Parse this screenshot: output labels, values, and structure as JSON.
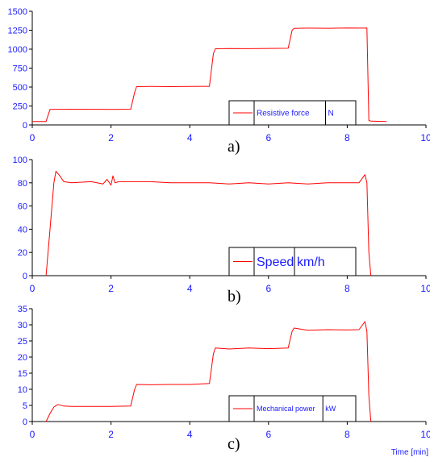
{
  "chart_data": [
    {
      "type": "line",
      "panel_label": "a)",
      "xlabel": "",
      "ylabel": "",
      "xlim": [
        0,
        10
      ],
      "ylim": [
        0,
        1500
      ],
      "x_ticks": [
        0,
        2,
        4,
        6,
        8,
        10
      ],
      "x_tick_labels": [
        "0",
        "2",
        "4",
        "6",
        "8",
        "10"
      ],
      "y_ticks": [
        0,
        250,
        500,
        750,
        1000,
        1250,
        1500
      ],
      "y_tick_labels": [
        "0",
        "250",
        "500",
        "750",
        "1000",
        "1250",
        "1500"
      ],
      "legend": {
        "name": "Resistive force",
        "unit": "N"
      },
      "series": [
        {
          "name": "Resistive force",
          "color": "#ff0000",
          "x": [
            0,
            0.35,
            0.45,
            1.0,
            2.0,
            2.5,
            2.6,
            2.65,
            3.0,
            3.5,
            4.0,
            4.5,
            4.6,
            4.65,
            5.0,
            5.5,
            6.0,
            6.5,
            6.6,
            6.65,
            7.0,
            7.5,
            8.0,
            8.4,
            8.5,
            8.55,
            8.6,
            9.0
          ],
          "y": [
            45,
            45,
            205,
            207,
            205,
            207,
            430,
            505,
            507,
            505,
            508,
            510,
            940,
            1005,
            1008,
            1006,
            1010,
            1012,
            1250,
            1275,
            1278,
            1276,
            1280,
            1278,
            1280,
            60,
            50,
            45
          ]
        }
      ]
    },
    {
      "type": "line",
      "panel_label": "b)",
      "xlabel": "",
      "ylabel": "",
      "xlim": [
        0,
        10
      ],
      "ylim": [
        0,
        100
      ],
      "x_ticks": [
        0,
        2,
        4,
        6,
        8,
        10
      ],
      "x_tick_labels": [
        "0",
        "2",
        "4",
        "6",
        "8",
        "10"
      ],
      "y_ticks": [
        0,
        20,
        40,
        60,
        80,
        100
      ],
      "y_tick_labels": [
        "0",
        "20",
        "40",
        "60",
        "80",
        "100"
      ],
      "legend": {
        "name": "Speed",
        "unit": "km/h"
      },
      "series": [
        {
          "name": "Speed",
          "color": "#ff0000",
          "x": [
            0.35,
            0.45,
            0.55,
            0.6,
            0.7,
            0.8,
            1.0,
            1.5,
            1.8,
            1.9,
            2.0,
            2.05,
            2.1,
            2.2,
            2.5,
            3.0,
            3.5,
            4.0,
            4.5,
            5.0,
            5.5,
            6.0,
            6.5,
            7.0,
            7.5,
            8.0,
            8.3,
            8.45,
            8.5,
            8.55,
            8.6
          ],
          "y": [
            0,
            40,
            80,
            90,
            86,
            81,
            80,
            81,
            79,
            83,
            78,
            86,
            80,
            81,
            81,
            81,
            80,
            80,
            80,
            79,
            80,
            79,
            80,
            79,
            80,
            80,
            80,
            87,
            80,
            20,
            0
          ]
        }
      ]
    },
    {
      "type": "line",
      "panel_label": "c)",
      "xlabel": "Time [min]",
      "ylabel": "",
      "xlim": [
        0,
        10
      ],
      "ylim": [
        0,
        35
      ],
      "x_ticks": [
        0,
        2,
        4,
        6,
        8,
        10
      ],
      "x_tick_labels": [
        "0",
        "2",
        "4",
        "6",
        "8",
        "10"
      ],
      "y_ticks": [
        0,
        5,
        10,
        15,
        20,
        25,
        30,
        35
      ],
      "y_tick_labels": [
        "0",
        "5",
        "10",
        "15",
        "20",
        "25",
        "30",
        "35"
      ],
      "legend": {
        "name": "Mechanical power",
        "unit": "kW"
      },
      "series": [
        {
          "name": "Mechanical power",
          "color": "#ff0000",
          "x": [
            0.35,
            0.45,
            0.55,
            0.65,
            0.8,
            1.0,
            1.5,
            2.0,
            2.5,
            2.6,
            2.65,
            3.0,
            3.5,
            4.0,
            4.5,
            4.6,
            4.65,
            5.0,
            5.5,
            6.0,
            6.5,
            6.6,
            6.65,
            7.0,
            7.5,
            8.0,
            8.3,
            8.45,
            8.5,
            8.55,
            8.6
          ],
          "y": [
            0,
            2.5,
            4.5,
            5.3,
            4.8,
            4.7,
            4.7,
            4.7,
            4.8,
            10,
            11.5,
            11.4,
            11.5,
            11.5,
            11.8,
            21,
            22.8,
            22.5,
            22.8,
            22.6,
            22.8,
            28,
            29,
            28.3,
            28.5,
            28.4,
            28.5,
            31,
            28,
            8,
            0
          ]
        }
      ]
    }
  ]
}
